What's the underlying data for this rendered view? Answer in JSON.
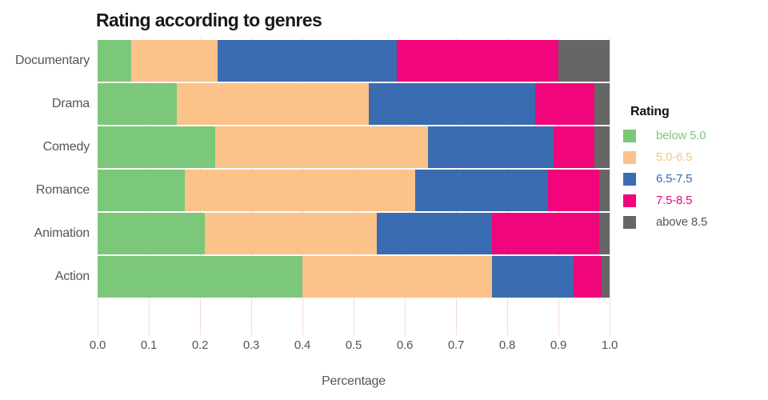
{
  "title": "Rating according to genres",
  "xlabel": "Percentage",
  "legend": {
    "title": "Rating",
    "items": [
      {
        "label": "below 5.0",
        "color": "#7cc87a",
        "text_color": "#7cc87a"
      },
      {
        "label": "5.0-6.5",
        "color": "#fbc28a",
        "text_color": "#fbc28a"
      },
      {
        "label": "6.5-7.5",
        "color": "#3a6cb1",
        "text_color": "#3a6cb1"
      },
      {
        "label": "7.5-8.5",
        "color": "#f0057c",
        "text_color": "#f0057c"
      },
      {
        "label": "above 8.5",
        "color": "#666666",
        "text_color": "#555555"
      }
    ]
  },
  "colors": {
    "grid": "#f4dcd6",
    "axis_text": "#555555",
    "title_text": "#1a1a1a"
  },
  "chart_data": {
    "type": "bar",
    "orientation": "horizontal",
    "stacked": true,
    "title": "Rating according to genres",
    "xlabel": "Percentage",
    "ylabel": "",
    "xlim": [
      0.0,
      1.0
    ],
    "x_ticks": [
      "0.0",
      "0.1",
      "0.2",
      "0.3",
      "0.4",
      "0.5",
      "0.6",
      "0.7",
      "0.8",
      "0.9",
      "1.0"
    ],
    "grid": true,
    "legend_position": "right",
    "categories": [
      "Documentary",
      "Drama",
      "Comedy",
      "Romance",
      "Animation",
      "Action"
    ],
    "series": [
      {
        "name": "below 5.0",
        "color": "#7cc87a",
        "values": [
          0.065,
          0.155,
          0.23,
          0.17,
          0.21,
          0.4
        ]
      },
      {
        "name": "5.0-6.5",
        "color": "#fbc28a",
        "values": [
          0.17,
          0.375,
          0.415,
          0.45,
          0.335,
          0.37
        ]
      },
      {
        "name": "6.5-7.5",
        "color": "#3a6cb1",
        "values": [
          0.35,
          0.325,
          0.245,
          0.26,
          0.225,
          0.16
        ]
      },
      {
        "name": "7.5-8.5",
        "color": "#f0057c",
        "values": [
          0.315,
          0.115,
          0.08,
          0.1,
          0.21,
          0.055
        ]
      },
      {
        "name": "above 8.5",
        "color": "#666666",
        "values": [
          0.1,
          0.03,
          0.03,
          0.02,
          0.02,
          0.015
        ]
      }
    ]
  }
}
